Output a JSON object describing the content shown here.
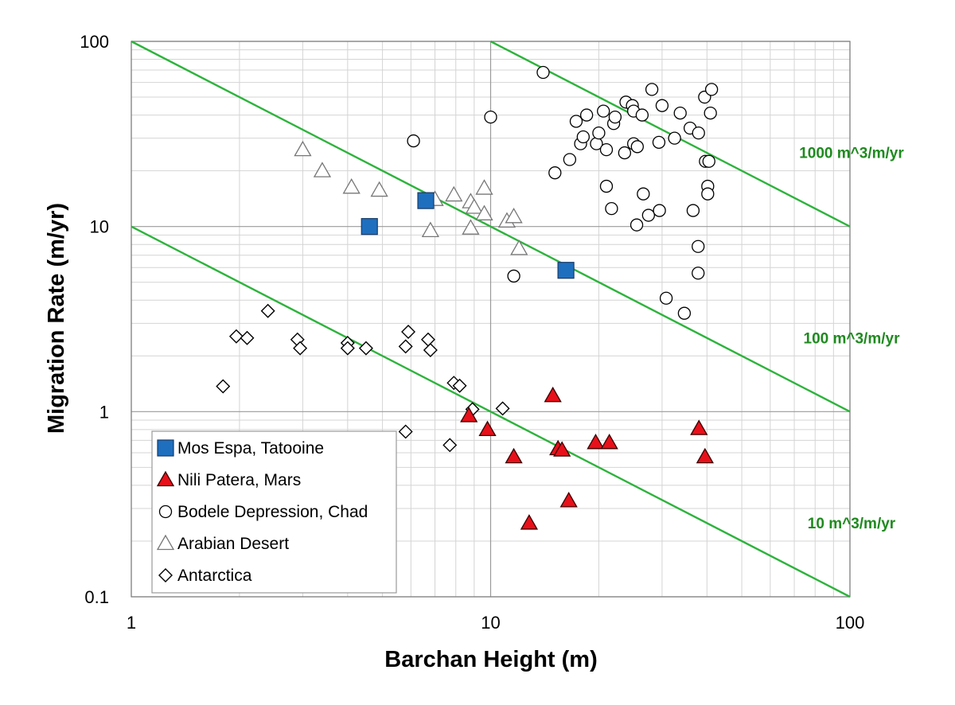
{
  "chart_data": {
    "type": "scatter",
    "xlabel": "Barchan Height (m)",
    "ylabel": "Migration Rate (m/yr)",
    "xscale": "log",
    "yscale": "log",
    "xlim": [
      1,
      100
    ],
    "ylim": [
      0.1,
      100
    ],
    "x_ticks": [
      {
        "value": 1,
        "label": "1"
      },
      {
        "value": 10,
        "label": "10"
      },
      {
        "value": 100,
        "label": "100"
      }
    ],
    "y_ticks": [
      {
        "value": 0.1,
        "label": "0.1"
      },
      {
        "value": 1,
        "label": "1"
      },
      {
        "value": 10,
        "label": "10"
      },
      {
        "value": 100,
        "label": "100"
      }
    ],
    "grid": true,
    "legend_position": "bottom-left",
    "series": [
      {
        "name": "Mos Espa, Tatooine",
        "marker": "square",
        "fill": "#1f6fbf",
        "stroke": "#1a3b66",
        "points": [
          [
            4.6,
            10.0
          ],
          [
            6.6,
            13.8
          ],
          [
            16.2,
            5.8
          ]
        ]
      },
      {
        "name": "Nili Patera, Mars",
        "marker": "triangle",
        "fill": "#e8101a",
        "stroke": "#3a0000",
        "points": [
          [
            8.7,
            0.95
          ],
          [
            9.8,
            0.8
          ],
          [
            11.6,
            0.57
          ],
          [
            12.8,
            0.25
          ],
          [
            14.9,
            1.22
          ],
          [
            15.4,
            0.63
          ],
          [
            15.8,
            0.62
          ],
          [
            16.5,
            0.33
          ],
          [
            19.6,
            0.68
          ],
          [
            21.4,
            0.68
          ],
          [
            38.0,
            0.81
          ],
          [
            39.5,
            0.57
          ]
        ]
      },
      {
        "name": "Bodele Depression, Chad",
        "marker": "circle",
        "fill": "#ffffff",
        "stroke": "#000000",
        "points": [
          [
            6.1,
            29.0
          ],
          [
            10.0,
            39.0
          ],
          [
            11.6,
            5.4
          ],
          [
            14.0,
            68.0
          ],
          [
            15.1,
            19.5
          ],
          [
            16.6,
            23.0
          ],
          [
            17.3,
            37.0
          ],
          [
            17.8,
            28.0
          ],
          [
            18.1,
            30.5
          ],
          [
            18.5,
            40.0
          ],
          [
            19.7,
            28.0
          ],
          [
            20.0,
            32.0
          ],
          [
            20.6,
            42.0
          ],
          [
            21.0,
            26.0
          ],
          [
            21.0,
            16.5
          ],
          [
            21.7,
            12.5
          ],
          [
            22.0,
            36.0
          ],
          [
            22.2,
            39.0
          ],
          [
            23.6,
            25.0
          ],
          [
            23.8,
            47.0
          ],
          [
            24.8,
            45.0
          ],
          [
            25.0,
            42.0
          ],
          [
            25.0,
            28.0
          ],
          [
            25.6,
            27.0
          ],
          [
            25.5,
            10.2
          ],
          [
            26.4,
            40.0
          ],
          [
            26.6,
            15.0
          ],
          [
            27.5,
            11.5
          ],
          [
            28.1,
            55.0
          ],
          [
            29.4,
            28.5
          ],
          [
            29.5,
            12.2
          ],
          [
            30.0,
            45.0
          ],
          [
            30.8,
            4.1
          ],
          [
            32.5,
            30.0
          ],
          [
            33.7,
            41.0
          ],
          [
            34.6,
            3.4
          ],
          [
            35.9,
            34.0
          ],
          [
            36.6,
            12.2
          ],
          [
            37.9,
            32.0
          ],
          [
            37.8,
            7.8
          ],
          [
            37.8,
            5.6
          ],
          [
            39.4,
            50.0
          ],
          [
            39.6,
            22.5
          ],
          [
            40.2,
            16.5
          ],
          [
            40.2,
            15.0
          ],
          [
            40.5,
            22.5
          ],
          [
            40.9,
            41.0
          ],
          [
            41.2,
            55.0
          ]
        ]
      },
      {
        "name": "Arabian Desert",
        "marker": "triangle",
        "fill": "#ffffff",
        "stroke": "#777777",
        "points": [
          [
            3.0,
            26.0
          ],
          [
            3.4,
            20.0
          ],
          [
            4.1,
            16.3
          ],
          [
            4.9,
            15.7
          ],
          [
            6.8,
            9.5
          ],
          [
            7.0,
            14.0
          ],
          [
            7.9,
            14.8
          ],
          [
            8.8,
            9.8
          ],
          [
            8.8,
            13.6
          ],
          [
            9.0,
            12.7
          ],
          [
            9.6,
            11.7
          ],
          [
            9.6,
            16.1
          ],
          [
            11.1,
            10.7
          ],
          [
            11.6,
            11.3
          ],
          [
            12.0,
            7.6
          ]
        ]
      },
      {
        "name": "Antarctica",
        "marker": "diamond",
        "fill": "#ffffff",
        "stroke": "#000000",
        "points": [
          [
            1.8,
            1.37
          ],
          [
            1.96,
            2.55
          ],
          [
            2.1,
            2.5
          ],
          [
            2.4,
            3.5
          ],
          [
            2.9,
            2.45
          ],
          [
            2.95,
            2.2
          ],
          [
            4.0,
            2.35
          ],
          [
            4.0,
            2.2
          ],
          [
            4.5,
            2.2
          ],
          [
            5.8,
            2.25
          ],
          [
            5.8,
            0.78
          ],
          [
            5.9,
            2.7
          ],
          [
            6.7,
            2.45
          ],
          [
            6.8,
            2.15
          ],
          [
            7.7,
            0.66
          ],
          [
            7.9,
            1.43
          ],
          [
            8.2,
            1.38
          ],
          [
            8.9,
            1.03
          ],
          [
            10.8,
            1.04
          ]
        ]
      }
    ],
    "flux_lines": [
      {
        "label": "1000 m^3/m/yr",
        "flux": 1000,
        "color": "#2db33c",
        "label_color": "#1f8a1f"
      },
      {
        "label": "100 m^3/m/yr",
        "flux": 100,
        "color": "#2db33c",
        "label_color": "#1f8a1f"
      },
      {
        "label": "10 m^3/m/yr",
        "flux": 10,
        "color": "#2db33c",
        "label_color": "#1f8a1f"
      }
    ]
  }
}
